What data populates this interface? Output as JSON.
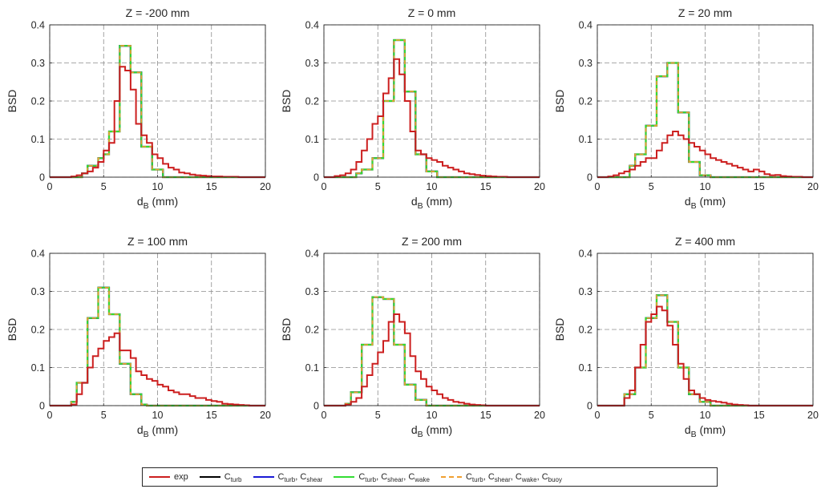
{
  "chart_data": [
    {
      "type": "step",
      "title": "Z = -200 mm",
      "xlabel": "d_B (mm)",
      "ylabel": "BSD",
      "xlim": [
        0,
        20
      ],
      "ylim": [
        0,
        0.4
      ],
      "grid": true,
      "bin_edges": [
        0,
        0.5,
        1,
        1.5,
        2,
        2.5,
        3,
        3.5,
        4,
        4.5,
        5,
        5.5,
        6,
        6.5,
        7,
        7.5,
        8,
        8.5,
        9,
        9.5,
        10,
        10.5,
        11,
        11.5,
        12,
        12.5,
        13,
        13.5,
        14,
        14.5,
        15,
        15.5,
        16,
        16.5,
        17,
        17.5,
        18,
        18.5,
        19,
        19.5,
        20
      ],
      "series": [
        {
          "name": "exp",
          "values": [
            0,
            0,
            0,
            0,
            0.002,
            0.005,
            0.01,
            0.015,
            0.025,
            0.04,
            0.07,
            0.09,
            0.2,
            0.29,
            0.28,
            0.23,
            0.14,
            0.11,
            0.09,
            0.06,
            0.05,
            0.035,
            0.025,
            0.02,
            0.012,
            0.01,
            0.007,
            0.005,
            0.004,
            0.003,
            0.002,
            0.002,
            0.001,
            0.001,
            0.001,
            0,
            0,
            0,
            0,
            0
          ]
        },
        {
          "name": "C_turb",
          "values": [
            0,
            0,
            0,
            0,
            0,
            0,
            0.01,
            0.03,
            0.03,
            0.05,
            0.06,
            0.12,
            0.12,
            0.345,
            0.345,
            0.275,
            0.275,
            0.08,
            0.08,
            0.02,
            0.02,
            0,
            0,
            0,
            0,
            0,
            0,
            0,
            0,
            0,
            0,
            0,
            0,
            0,
            0,
            0,
            0,
            0,
            0,
            0
          ]
        }
      ]
    },
    {
      "type": "step",
      "title": "Z = 0 mm",
      "xlabel": "d_B (mm)",
      "ylabel": "BSD",
      "xlim": [
        0,
        20
      ],
      "ylim": [
        0,
        0.4
      ],
      "grid": true,
      "bin_edges": [
        0,
        0.5,
        1,
        1.5,
        2,
        2.5,
        3,
        3.5,
        4,
        4.5,
        5,
        5.5,
        6,
        6.5,
        7,
        7.5,
        8,
        8.5,
        9,
        9.5,
        10,
        10.5,
        11,
        11.5,
        12,
        12.5,
        13,
        13.5,
        14,
        14.5,
        15,
        15.5,
        16,
        16.5,
        17,
        17.5,
        18,
        18.5,
        19,
        19.5,
        20
      ],
      "series": [
        {
          "name": "exp",
          "values": [
            0,
            0,
            0.003,
            0.005,
            0.01,
            0.02,
            0.04,
            0.07,
            0.1,
            0.14,
            0.16,
            0.22,
            0.26,
            0.31,
            0.27,
            0.2,
            0.12,
            0.07,
            0.06,
            0.05,
            0.045,
            0.04,
            0.03,
            0.025,
            0.02,
            0.015,
            0.01,
            0.008,
            0.006,
            0.004,
            0.003,
            0.002,
            0.001,
            0.001,
            0,
            0,
            0,
            0,
            0,
            0
          ]
        },
        {
          "name": "C_turb",
          "values": [
            0,
            0,
            0,
            0,
            0,
            0,
            0.01,
            0.02,
            0.02,
            0.05,
            0.05,
            0.2,
            0.2,
            0.36,
            0.36,
            0.225,
            0.225,
            0.06,
            0.06,
            0.015,
            0.015,
            0,
            0,
            0,
            0,
            0,
            0,
            0,
            0,
            0,
            0,
            0,
            0,
            0,
            0,
            0,
            0,
            0,
            0,
            0
          ]
        }
      ]
    },
    {
      "type": "step",
      "title": "Z = 20 mm",
      "xlabel": "d_B (mm)",
      "ylabel": "BSD",
      "xlim": [
        0,
        20
      ],
      "ylim": [
        0,
        0.4
      ],
      "grid": true,
      "bin_edges": [
        0,
        0.5,
        1,
        1.5,
        2,
        2.5,
        3,
        3.5,
        4,
        4.5,
        5,
        5.5,
        6,
        6.5,
        7,
        7.5,
        8,
        8.5,
        9,
        9.5,
        10,
        10.5,
        11,
        11.5,
        12,
        12.5,
        13,
        13.5,
        14,
        14.5,
        15,
        15.5,
        16,
        16.5,
        17,
        17.5,
        18,
        18.5,
        19,
        19.5,
        20
      ],
      "series": [
        {
          "name": "exp",
          "values": [
            0,
            0,
            0.002,
            0.005,
            0.01,
            0.015,
            0.02,
            0.03,
            0.04,
            0.05,
            0.05,
            0.07,
            0.09,
            0.11,
            0.12,
            0.11,
            0.1,
            0.09,
            0.08,
            0.07,
            0.06,
            0.05,
            0.045,
            0.04,
            0.035,
            0.03,
            0.025,
            0.02,
            0.015,
            0.02,
            0.015,
            0.008,
            0.005,
            0.006,
            0.003,
            0.002,
            0.001,
            0.001,
            0,
            0
          ]
        },
        {
          "name": "C_turb",
          "values": [
            0,
            0,
            0,
            0,
            0,
            0,
            0.03,
            0.06,
            0.06,
            0.135,
            0.135,
            0.265,
            0.265,
            0.3,
            0.3,
            0.17,
            0.17,
            0.04,
            0.04,
            0.005,
            0.005,
            0,
            0,
            0,
            0,
            0,
            0,
            0,
            0,
            0,
            0,
            0,
            0,
            0,
            0,
            0,
            0,
            0,
            0,
            0
          ]
        }
      ]
    },
    {
      "type": "step",
      "title": "Z = 100 mm",
      "xlabel": "d_B (mm)",
      "ylabel": "BSD",
      "xlim": [
        0,
        20
      ],
      "ylim": [
        0,
        0.4
      ],
      "grid": true,
      "bin_edges": [
        0,
        0.5,
        1,
        1.5,
        2,
        2.5,
        3,
        3.5,
        4,
        4.5,
        5,
        5.5,
        6,
        6.5,
        7,
        7.5,
        8,
        8.5,
        9,
        9.5,
        10,
        10.5,
        11,
        11.5,
        12,
        12.5,
        13,
        13.5,
        14,
        14.5,
        15,
        15.5,
        16,
        16.5,
        17,
        17.5,
        18,
        18.5,
        19,
        19.5,
        20
      ],
      "series": [
        {
          "name": "exp",
          "values": [
            0,
            0,
            0,
            0,
            0.003,
            0.03,
            0.06,
            0.1,
            0.13,
            0.15,
            0.17,
            0.18,
            0.19,
            0.145,
            0.145,
            0.125,
            0.09,
            0.08,
            0.07,
            0.065,
            0.055,
            0.05,
            0.04,
            0.035,
            0.03,
            0.03,
            0.025,
            0.02,
            0.02,
            0.015,
            0.012,
            0.01,
            0.005,
            0.004,
            0.003,
            0.002,
            0.001,
            0,
            0,
            0
          ]
        },
        {
          "name": "C_turb",
          "values": [
            0,
            0,
            0,
            0,
            0.01,
            0.06,
            0.06,
            0.23,
            0.23,
            0.31,
            0.31,
            0.24,
            0.24,
            0.11,
            0.11,
            0.03,
            0.03,
            0.003,
            0,
            0,
            0,
            0,
            0,
            0,
            0,
            0,
            0,
            0,
            0,
            0,
            0,
            0,
            0,
            0,
            0,
            0,
            0,
            0,
            0,
            0
          ]
        }
      ]
    },
    {
      "type": "step",
      "title": "Z = 200 mm",
      "xlabel": "d_B (mm)",
      "ylabel": "BSD",
      "xlim": [
        0,
        20
      ],
      "ylim": [
        0,
        0.4
      ],
      "grid": true,
      "bin_edges": [
        0,
        0.5,
        1,
        1.5,
        2,
        2.5,
        3,
        3.5,
        4,
        4.5,
        5,
        5.5,
        6,
        6.5,
        7,
        7.5,
        8,
        8.5,
        9,
        9.5,
        10,
        10.5,
        11,
        11.5,
        12,
        12.5,
        13,
        13.5,
        14,
        14.5,
        15,
        15.5,
        16,
        16.5,
        17,
        17.5,
        18,
        18.5,
        19,
        19.5,
        20
      ],
      "series": [
        {
          "name": "exp",
          "values": [
            0,
            0,
            0,
            0,
            0.003,
            0.01,
            0.02,
            0.05,
            0.08,
            0.11,
            0.14,
            0.17,
            0.22,
            0.24,
            0.22,
            0.19,
            0.13,
            0.09,
            0.07,
            0.05,
            0.04,
            0.03,
            0.02,
            0.015,
            0.01,
            0.008,
            0.005,
            0.003,
            0.002,
            0.001,
            0,
            0,
            0,
            0,
            0,
            0,
            0,
            0,
            0,
            0
          ]
        },
        {
          "name": "C_turb",
          "values": [
            0,
            0,
            0,
            0,
            0.005,
            0.035,
            0.035,
            0.16,
            0.16,
            0.285,
            0.285,
            0.28,
            0.28,
            0.16,
            0.16,
            0.055,
            0.055,
            0.015,
            0.015,
            0,
            0,
            0,
            0,
            0,
            0,
            0,
            0,
            0,
            0,
            0,
            0,
            0,
            0,
            0,
            0,
            0,
            0,
            0,
            0,
            0
          ]
        }
      ]
    },
    {
      "type": "step",
      "title": "Z = 400 mm",
      "xlabel": "d_B (mm)",
      "ylabel": "BSD",
      "xlim": [
        0,
        20
      ],
      "ylim": [
        0,
        0.4
      ],
      "grid": true,
      "bin_edges": [
        0,
        0.5,
        1,
        1.5,
        2,
        2.5,
        3,
        3.5,
        4,
        4.5,
        5,
        5.5,
        6,
        6.5,
        7,
        7.5,
        8,
        8.5,
        9,
        9.5,
        10,
        10.5,
        11,
        11.5,
        12,
        12.5,
        13,
        13.5,
        14,
        14.5,
        15,
        15.5,
        16,
        16.5,
        17,
        17.5,
        18,
        18.5,
        19,
        19.5,
        20
      ],
      "series": [
        {
          "name": "exp",
          "values": [
            0,
            0,
            0,
            0,
            0,
            0.02,
            0.04,
            0.1,
            0.16,
            0.22,
            0.24,
            0.26,
            0.25,
            0.21,
            0.16,
            0.11,
            0.07,
            0.04,
            0.03,
            0.02,
            0.015,
            0.012,
            0.01,
            0.008,
            0.005,
            0.003,
            0.002,
            0.001,
            0,
            0,
            0,
            0,
            0,
            0,
            0,
            0,
            0,
            0,
            0,
            0
          ]
        },
        {
          "name": "C_turb",
          "values": [
            0,
            0,
            0,
            0,
            0,
            0.03,
            0.03,
            0.1,
            0.1,
            0.23,
            0.23,
            0.29,
            0.29,
            0.22,
            0.22,
            0.1,
            0.1,
            0.03,
            0.03,
            0.01,
            0.01,
            0,
            0,
            0,
            0,
            0,
            0,
            0,
            0,
            0,
            0,
            0,
            0,
            0,
            0,
            0,
            0,
            0,
            0,
            0
          ]
        }
      ]
    }
  ],
  "axis_ticks": {
    "x": [
      "0",
      "5",
      "10",
      "15",
      "20"
    ],
    "y": [
      "0",
      "0.1",
      "0.2",
      "0.3",
      "0.4"
    ]
  },
  "legend": {
    "placement": "bottom-center",
    "items": [
      {
        "label": "exp",
        "color": "#cc1f1f",
        "dashed": false,
        "base": "exp",
        "subs": []
      },
      {
        "label": "C_turb",
        "color": "#000000",
        "dashed": false,
        "base": "C",
        "subs": [
          "turb"
        ]
      },
      {
        "label": "C_turb, C_shear",
        "color": "#1a1ad6",
        "dashed": false,
        "base": "C",
        "subs": [
          "turb",
          "shear"
        ]
      },
      {
        "label": "C_turb, C_shear, C_wake",
        "color": "#33dd33",
        "dashed": false,
        "base": "C",
        "subs": [
          "turb",
          "shear",
          "wake"
        ]
      },
      {
        "label": "C_turb, C_shear, C_wake, C_buoy",
        "color": "#f0a030",
        "dashed": true,
        "base": "C",
        "subs": [
          "turb",
          "shear",
          "wake",
          "buoy"
        ]
      }
    ]
  },
  "colors": {
    "exp": "#cc1f1f",
    "turb": "#000000",
    "shear": "#1a1ad6",
    "wake": "#33dd33",
    "buoy": "#f0a030",
    "grid": "#8c8c8c",
    "axis": "#262626"
  }
}
